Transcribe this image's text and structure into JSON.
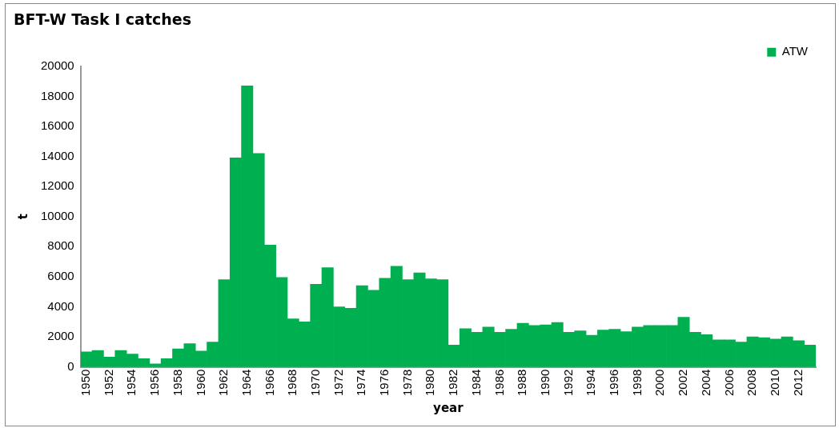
{
  "chart_data": {
    "type": "bar",
    "title": "BFT-W Task I catches",
    "xlabel": "year",
    "ylabel": "t",
    "categories": [
      "1950",
      null,
      "1952",
      null,
      "1954",
      null,
      "1956",
      null,
      "1958",
      null,
      "1960",
      null,
      "1962",
      null,
      "1964",
      null,
      "1966",
      null,
      "1968",
      null,
      "1970",
      null,
      "1972",
      null,
      "1974",
      null,
      "1976",
      null,
      "1978",
      null,
      "1980",
      null,
      "1982",
      null,
      "1984",
      null,
      "1986",
      null,
      "1988",
      null,
      "1990",
      null,
      "1992",
      null,
      "1994",
      null,
      "1996",
      null,
      "1998",
      null,
      "2000",
      null,
      "2002",
      null,
      "2004",
      null,
      "2006",
      null,
      "2008",
      null,
      "2010",
      null,
      "2012",
      null
    ],
    "series": [
      {
        "name": "ATW",
        "color": "#00b050",
        "values": [
          1000,
          1100,
          650,
          1100,
          850,
          550,
          200,
          550,
          1200,
          1550,
          1050,
          1650,
          5800,
          13900,
          18700,
          14200,
          8100,
          5950,
          3200,
          3000,
          5500,
          6600,
          4000,
          3900,
          5400,
          5100,
          5900,
          6700,
          5800,
          6250,
          5850,
          5800,
          1450,
          2550,
          2300,
          2650,
          2300,
          2500,
          2900,
          2750,
          2800,
          2950,
          2300,
          2400,
          2100,
          2450,
          2500,
          2350,
          2650,
          2750,
          2750,
          2750,
          3300,
          2300,
          2150,
          1800,
          1800,
          1650,
          2000,
          1950,
          1850,
          2000,
          1750,
          1450
        ]
      }
    ],
    "ylim": [
      0,
      20000
    ],
    "yticks": [
      0,
      2000,
      4000,
      6000,
      8000,
      10000,
      12000,
      14000,
      16000,
      18000,
      20000
    ],
    "grid": false,
    "legend": "top right"
  }
}
